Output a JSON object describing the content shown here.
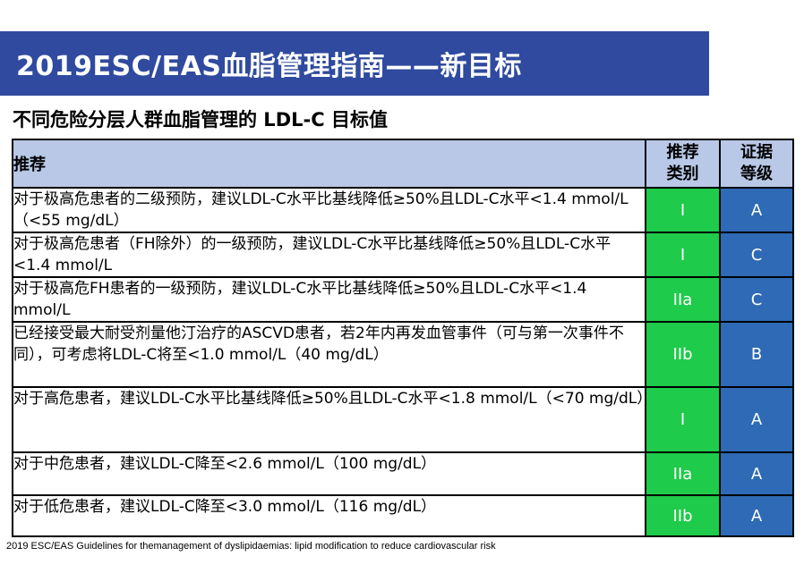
{
  "header": {
    "title": "2019ESC/EAS血脂管理指南——新目标"
  },
  "subtitle": "不同危险分层人群血脂管理的 LDL-C 目标值",
  "table": {
    "headers": {
      "recommendation": "推荐",
      "class": "推荐类别",
      "level": "证据等级"
    },
    "rows": [
      {
        "text": "对于极高危患者的二级预防，建议LDL-C水平比基线降低≥50%且LDL-C水平<1.4 mmol/L（<55 mg/dL）",
        "class": "I",
        "level": "A"
      },
      {
        "text": "对于极高危患者（FH除外）的一级预防，建议LDL-C水平比基线降低≥50%且LDL-C水平<1.4 mmol/L",
        "class": "I",
        "level": "C"
      },
      {
        "text": "对于极高危FH患者的一级预防，建议LDL-C水平比基线降低≥50%且LDL-C水平<1.4 mmol/L",
        "class": "IIa",
        "level": "C"
      },
      {
        "text": "已经接受最大耐受剂量他汀治疗的ASCVD患者，若2年内再发血管事件（可与第一次事件不同），可考虑将LDL-C将至<1.0 mmol/L（40 mg/dL）",
        "class": "IIb",
        "level": "B"
      },
      {
        "text": "对于高危患者，建议LDL-C水平比基线降低≥50%且LDL-C水平<1.8 mmol/L（<70 mg/dL）",
        "class": "I",
        "level": "A"
      },
      {
        "text": "对于中危患者，建议LDL-C降至<2.6 mmol/L（100 mg/dL）",
        "class": "IIa",
        "level": "A"
      },
      {
        "text": "对于低危患者，建议LDL-C降至<3.0 mmol/L（116 mg/dL）",
        "class": "IIb",
        "level": "A"
      }
    ]
  },
  "footnote": "2019 ESC/EAS Guidelines for themanagement of dyslipidaemias: lipid modification to reduce cardiovascular risk",
  "colors": {
    "banner": "#2f4a9e",
    "header_cells": "#b8c8e6",
    "class_cells": "#1fcb4a",
    "level_cells": "#2e6ab5"
  }
}
